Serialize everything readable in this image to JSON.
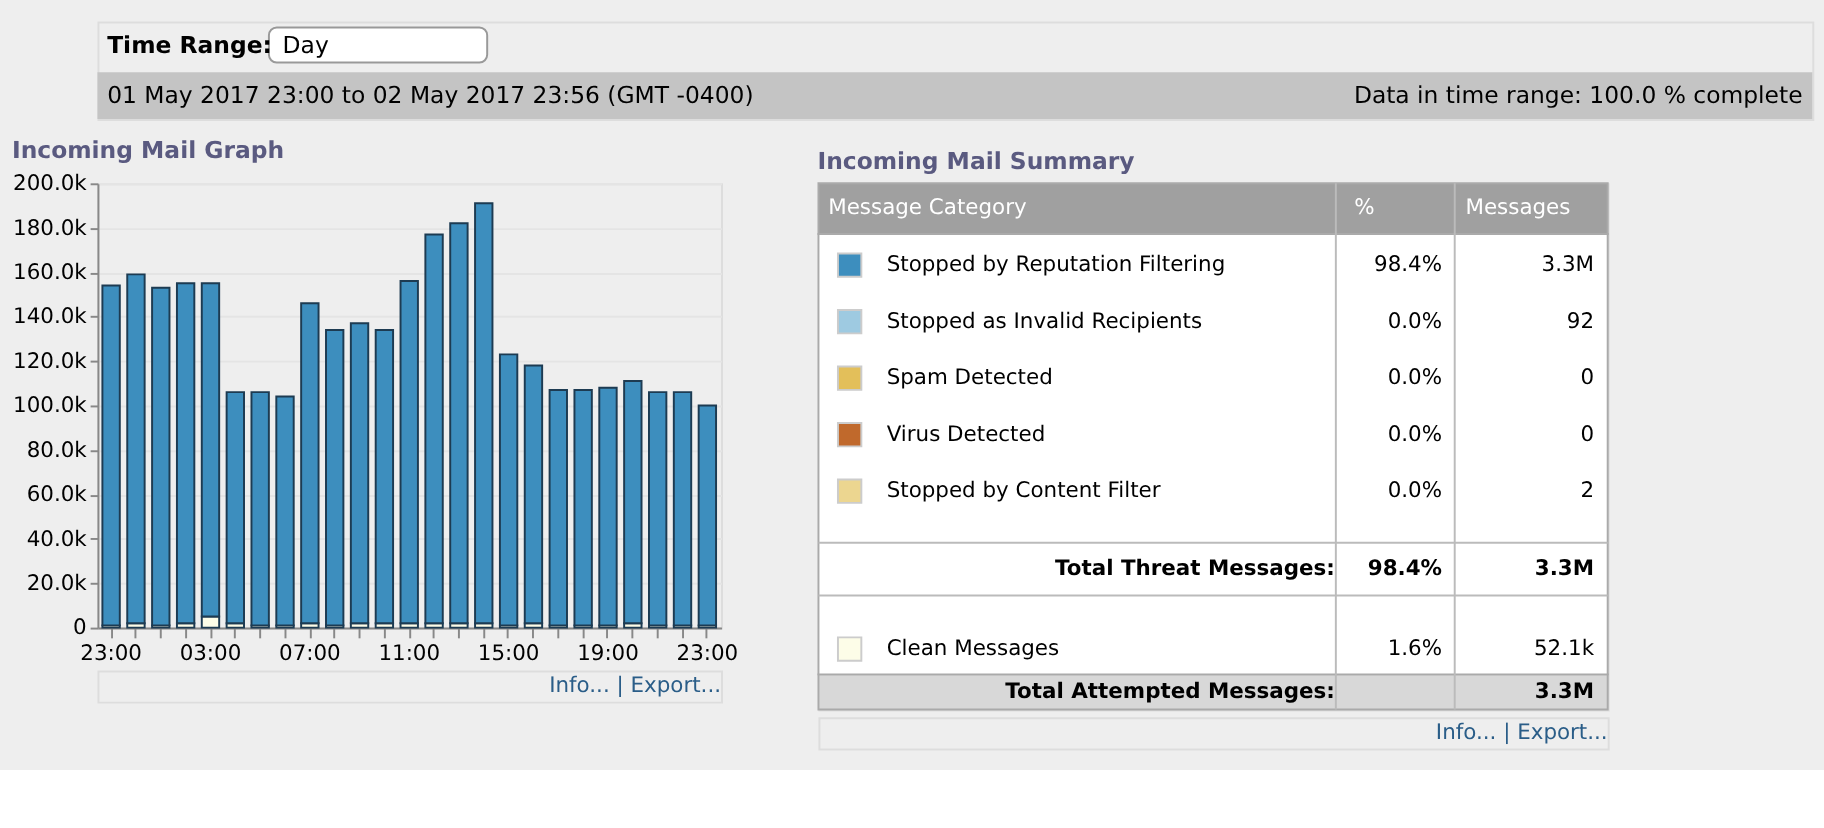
{
  "chart_data": [
    {
      "type": "bar",
      "title": "Incoming Mail Graph",
      "stacked": true,
      "grid": "y",
      "categories": [
        "23:00",
        null,
        null,
        null,
        "03:00",
        null,
        null,
        null,
        "07:00",
        null,
        null,
        null,
        "11:00",
        null,
        null,
        null,
        "15:00",
        null,
        null,
        null,
        "19:00",
        null,
        null,
        null,
        "23:00"
      ],
      "series": [
        {
          "color": "#fdfde8",
          "values": [
            1000,
            2000,
            1000,
            2000,
            5000,
            2000,
            1000,
            1000,
            2000,
            1000,
            2000,
            2000,
            2000,
            2000,
            2000,
            2000,
            1000,
            2000,
            1000,
            1000,
            1000,
            2000,
            1000,
            1000,
            1000
          ]
        },
        {
          "color": "#3d8ebe",
          "values": [
            153000,
            157000,
            152000,
            153000,
            150000,
            104000,
            105000,
            103000,
            144000,
            133000,
            135000,
            132000,
            154000,
            175000,
            180000,
            189000,
            122000,
            116000,
            106000,
            106000,
            107000,
            109000,
            105000,
            105000,
            99000
          ]
        }
      ],
      "ylim": [
        0,
        200000
      ],
      "yticks": [
        0,
        {
          "value": 20000,
          "label": "20.0k"
        },
        {
          "value": 40000,
          "label": "40.0k"
        },
        {
          "value": 60000,
          "label": "60.0k"
        },
        {
          "value": 80000,
          "label": "80.0k"
        },
        {
          "value": 100000,
          "label": "100.0k"
        },
        {
          "value": 120000,
          "label": "120.0k"
        },
        {
          "value": 140000,
          "label": "140.0k"
        },
        {
          "value": 160000,
          "label": "160.0k"
        },
        {
          "value": 180000,
          "label": "180.0k"
        },
        {
          "value": 200000,
          "label": "200.0k"
        }
      ],
      "annotations": [
        "Time Range:",
        "Day",
        "01 May 2017 23:00 to 02 May 2017 23:56 (GMT -0400)",
        "Data in time range: 100.0 % complete",
        "Info... | Export..."
      ]
    },
    {
      "type": "other",
      "title": "Incoming Mail Summary",
      "categories": [
        "Stopped by Reputation Filtering",
        "Stopped as Invalid Recipients",
        "Spam Detected",
        "Virus Detected",
        "Stopped by Content Filter",
        "Clean Messages"
      ],
      "colors": [
        "#3d8ebe",
        "#9ecae1",
        "#e3bf5a",
        "#c0692c",
        "#ecd690",
        "#fdfde8"
      ],
      "annotations": [
        "Message Category",
        "%",
        "Messages",
        "98.4%",
        "3.3M",
        "0.0%",
        "92",
        "0.0%",
        "0",
        "0.0%",
        "0",
        "0.0%",
        "2",
        "Total Threat Messages:",
        "98.4%",
        "3.3M",
        "1.6%",
        "52.1k",
        "Total Attempted Messages:",
        "3.3M",
        "Info... | Export..."
      ]
    }
  ]
}
